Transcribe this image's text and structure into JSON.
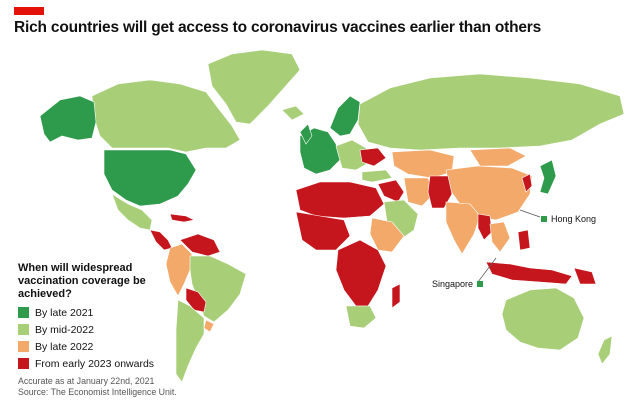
{
  "header": {
    "title": "Rich countries will get access to coronavirus vaccines earlier than others"
  },
  "legend": {
    "title": "When will widespread vaccination coverage be achieved?",
    "items": [
      {
        "label": "By late 2021",
        "color": "#2e9a4b"
      },
      {
        "label": "By mid-2022",
        "color": "#a8cf78"
      },
      {
        "label": "By late 2022",
        "color": "#f2a96a"
      },
      {
        "label": "From early 2023 onwards",
        "color": "#c6161d"
      }
    ]
  },
  "callouts": {
    "hong_kong": "Hong Kong",
    "singapore": "Singapore"
  },
  "notes": {
    "accuracy": "Accurate as at January 22nd, 2021",
    "source": "Source: The Economist Intelligence Unit."
  },
  "colors": {
    "late_2021": "#2e9a4b",
    "mid_2022": "#a8cf78",
    "late_2022": "#f2a96a",
    "early_2023": "#c6161d",
    "brand_flag": "#e3120b"
  }
}
